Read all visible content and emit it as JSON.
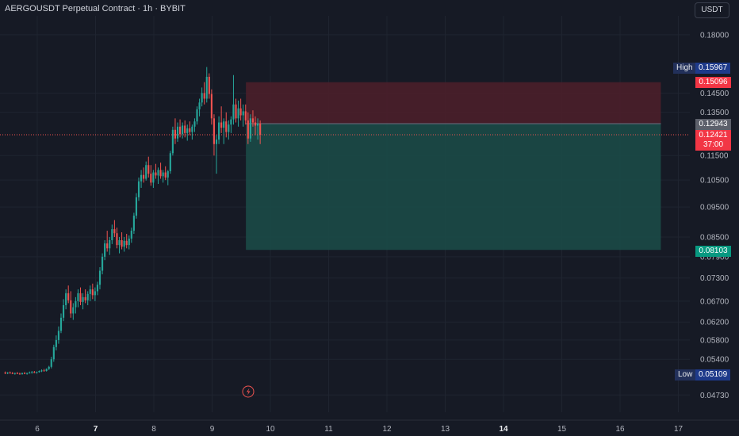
{
  "header": {
    "title": "AERGOUSDT Perpetual Contract · 1h · BYBIT",
    "currency": "USDT"
  },
  "colors": {
    "background": "#161a25",
    "up": "#26a69a",
    "down": "#ef5350",
    "stop_zone": "#4a1f2a",
    "target_zone": "#1b4a47",
    "grid": "#1f2430",
    "axis_text": "#b2b5be"
  },
  "price_labels": {
    "high_label": "High",
    "high_value": "0.15967",
    "low_label": "Low",
    "low_value": "0.05109",
    "stop": "0.15096",
    "entry": "0.12943",
    "current": "0.12421",
    "countdown": "37:00",
    "target": "0.08103"
  },
  "chart_data": {
    "type": "candlestick",
    "title": "AERGOUSDT Perpetual Contract · 1h · BYBIT",
    "x_ticks": [
      "6",
      "7",
      "8",
      "9",
      "10",
      "11",
      "12",
      "13",
      "14",
      "15",
      "16",
      "17"
    ],
    "bold_x_ticks": [
      "7",
      "14"
    ],
    "y_ticks": [
      "0.18000",
      "0.14500",
      "0.13500",
      "0.11500",
      "0.10500",
      "0.09500",
      "0.08500",
      "0.07900",
      "0.07300",
      "0.06700",
      "0.06200",
      "0.05800",
      "0.05400",
      "0.04730"
    ],
    "y_scale": "log",
    "ylim": [
      0.0455,
      0.19
    ],
    "x_range_days": [
      5.45,
      17.6
    ],
    "high": 0.15967,
    "low": 0.05109,
    "position": {
      "side": "short",
      "start_day": 9.58,
      "end_day": 16.7,
      "entry": 0.12943,
      "stop": 0.15096,
      "target": 0.08103
    },
    "current_price": 0.12421,
    "candles_approx": {
      "start_day": 5.45,
      "bar_hours": 1,
      "ohlc": [
        [
          0.0514,
          0.0516,
          0.0511,
          0.0513
        ],
        [
          0.0513,
          0.0515,
          0.0511,
          0.0514
        ],
        [
          0.0514,
          0.0516,
          0.0512,
          0.0513
        ],
        [
          0.0513,
          0.0515,
          0.0511,
          0.0512
        ],
        [
          0.0512,
          0.0514,
          0.051,
          0.0513
        ],
        [
          0.0513,
          0.0515,
          0.0511,
          0.0512
        ],
        [
          0.0512,
          0.0514,
          0.051,
          0.0511
        ],
        [
          0.0511,
          0.0514,
          0.051,
          0.0513
        ],
        [
          0.0513,
          0.0515,
          0.0511,
          0.0512
        ],
        [
          0.0512,
          0.0514,
          0.051,
          0.0513
        ],
        [
          0.0513,
          0.0516,
          0.0512,
          0.0514
        ],
        [
          0.0514,
          0.0517,
          0.0512,
          0.0515
        ],
        [
          0.0515,
          0.0517,
          0.0513,
          0.0514
        ],
        [
          0.0514,
          0.0516,
          0.0512,
          0.0515
        ],
        [
          0.0515,
          0.0518,
          0.0514,
          0.0517
        ],
        [
          0.0517,
          0.052,
          0.0515,
          0.0518
        ],
        [
          0.0518,
          0.0521,
          0.0516,
          0.0517
        ],
        [
          0.0517,
          0.0522,
          0.0516,
          0.0521
        ],
        [
          0.0521,
          0.0527,
          0.0519,
          0.0525
        ],
        [
          0.0525,
          0.0545,
          0.0522,
          0.054
        ],
        [
          0.054,
          0.057,
          0.0535,
          0.0565
        ],
        [
          0.0565,
          0.059,
          0.0558,
          0.058
        ],
        [
          0.058,
          0.061,
          0.0572,
          0.06
        ],
        [
          0.06,
          0.064,
          0.0595,
          0.063
        ],
        [
          0.063,
          0.0675,
          0.0622,
          0.066
        ],
        [
          0.066,
          0.07,
          0.065,
          0.069
        ],
        [
          0.069,
          0.071,
          0.0665,
          0.0672
        ],
        [
          0.0672,
          0.0695,
          0.063,
          0.064
        ],
        [
          0.064,
          0.0665,
          0.0625,
          0.0655
        ],
        [
          0.0655,
          0.068,
          0.064,
          0.067
        ],
        [
          0.067,
          0.07,
          0.0655,
          0.069
        ],
        [
          0.069,
          0.0705,
          0.066,
          0.0668
        ],
        [
          0.0668,
          0.069,
          0.065,
          0.068
        ],
        [
          0.068,
          0.07,
          0.0665,
          0.0672
        ],
        [
          0.0672,
          0.0695,
          0.066,
          0.0688
        ],
        [
          0.0688,
          0.071,
          0.067,
          0.07
        ],
        [
          0.07,
          0.0715,
          0.0675,
          0.0685
        ],
        [
          0.0685,
          0.0705,
          0.067,
          0.0695
        ],
        [
          0.0695,
          0.072,
          0.0685,
          0.0712
        ],
        [
          0.0712,
          0.076,
          0.07,
          0.075
        ],
        [
          0.075,
          0.08,
          0.074,
          0.079
        ],
        [
          0.079,
          0.084,
          0.078,
          0.083
        ],
        [
          0.083,
          0.087,
          0.0805,
          0.0815
        ],
        [
          0.0815,
          0.085,
          0.0795,
          0.084
        ],
        [
          0.084,
          0.089,
          0.0828,
          0.0875
        ],
        [
          0.0875,
          0.0905,
          0.085,
          0.0862
        ],
        [
          0.0862,
          0.088,
          0.0815,
          0.0825
        ],
        [
          0.0825,
          0.085,
          0.08,
          0.084
        ],
        [
          0.084,
          0.0865,
          0.0812,
          0.082
        ],
        [
          0.082,
          0.085,
          0.0805,
          0.0838
        ],
        [
          0.0838,
          0.086,
          0.0815,
          0.0825
        ],
        [
          0.0825,
          0.0855,
          0.0812,
          0.0845
        ],
        [
          0.0845,
          0.088,
          0.0832,
          0.087
        ],
        [
          0.087,
          0.093,
          0.086,
          0.092
        ],
        [
          0.092,
          0.1,
          0.091,
          0.0985
        ],
        [
          0.0985,
          0.106,
          0.0972,
          0.1045
        ],
        [
          0.1045,
          0.109,
          0.102,
          0.107
        ],
        [
          0.107,
          0.11,
          0.104,
          0.1055
        ],
        [
          0.1055,
          0.1125,
          0.1048,
          0.111
        ],
        [
          0.111,
          0.1145,
          0.106,
          0.1075
        ],
        [
          0.1075,
          0.111,
          0.1028,
          0.104
        ],
        [
          0.104,
          0.109,
          0.102,
          0.108
        ],
        [
          0.108,
          0.1115,
          0.1055,
          0.1068
        ],
        [
          0.1068,
          0.11,
          0.1035,
          0.109
        ],
        [
          0.109,
          0.112,
          0.1055,
          0.1065
        ],
        [
          0.1065,
          0.109,
          0.104,
          0.108
        ],
        [
          0.108,
          0.1105,
          0.105,
          0.106
        ],
        [
          0.106,
          0.109,
          0.103,
          0.1085
        ],
        [
          0.1085,
          0.117,
          0.1075,
          0.116
        ],
        [
          0.116,
          0.128,
          0.115,
          0.1265
        ],
        [
          0.1265,
          0.132,
          0.12,
          0.1225
        ],
        [
          0.1225,
          0.13,
          0.121,
          0.128
        ],
        [
          0.128,
          0.1315,
          0.123,
          0.1245
        ],
        [
          0.1245,
          0.13,
          0.1225,
          0.1285
        ],
        [
          0.1285,
          0.131,
          0.123,
          0.125
        ],
        [
          0.125,
          0.129,
          0.1215,
          0.1272
        ],
        [
          0.1272,
          0.1305,
          0.124,
          0.1255
        ],
        [
          0.1255,
          0.129,
          0.122,
          0.128
        ],
        [
          0.128,
          0.132,
          0.1255,
          0.1305
        ],
        [
          0.1305,
          0.138,
          0.129,
          0.1365
        ],
        [
          0.1365,
          0.142,
          0.133,
          0.14
        ],
        [
          0.14,
          0.148,
          0.138,
          0.145
        ],
        [
          0.145,
          0.151,
          0.139,
          0.142
        ],
        [
          0.142,
          0.1597,
          0.14,
          0.154
        ],
        [
          0.154,
          0.156,
          0.142,
          0.1445
        ],
        [
          0.1445,
          0.147,
          0.129,
          0.132
        ],
        [
          0.132,
          0.134,
          0.115,
          0.12
        ],
        [
          0.12,
          0.124,
          0.1075,
          0.122
        ],
        [
          0.122,
          0.133,
          0.12,
          0.13
        ],
        [
          0.13,
          0.138,
          0.125,
          0.1275
        ],
        [
          0.1275,
          0.132,
          0.12,
          0.1305
        ],
        [
          0.1305,
          0.135,
          0.123,
          0.1255
        ],
        [
          0.1255,
          0.131,
          0.122,
          0.129
        ],
        [
          0.129,
          0.133,
          0.125,
          0.1315
        ],
        [
          0.1315,
          0.155,
          0.129,
          0.139
        ],
        [
          0.139,
          0.142,
          0.13,
          0.132
        ],
        [
          0.132,
          0.141,
          0.128,
          0.137
        ],
        [
          0.137,
          0.142,
          0.131,
          0.1335
        ],
        [
          0.1335,
          0.139,
          0.128,
          0.1355
        ],
        [
          0.1355,
          0.139,
          0.129,
          0.131
        ],
        [
          0.131,
          0.135,
          0.12,
          0.1225
        ],
        [
          0.1225,
          0.134,
          0.121,
          0.132
        ],
        [
          0.132,
          0.136,
          0.128,
          0.13
        ],
        [
          0.13,
          0.133,
          0.124,
          0.1285
        ],
        [
          0.1285,
          0.132,
          0.122,
          0.1295
        ],
        [
          0.1295,
          0.131,
          0.12,
          0.1242
        ]
      ]
    }
  }
}
